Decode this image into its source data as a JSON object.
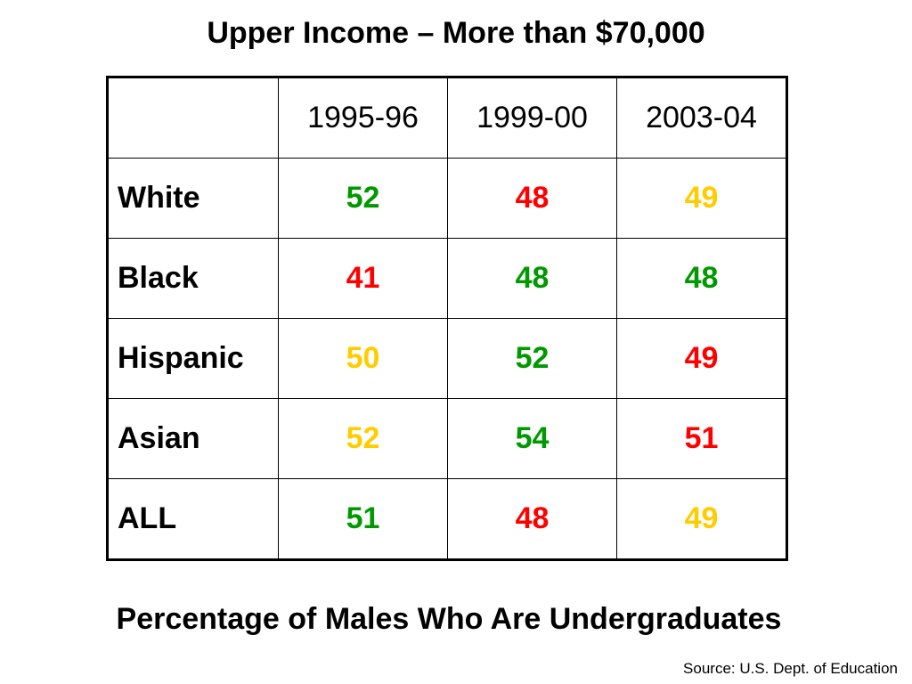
{
  "header": {
    "title": "Upper Income – More than $70,000"
  },
  "table": {
    "columns": [
      "1995-96",
      "1999-00",
      "2003-04"
    ],
    "rows": [
      {
        "label": "White",
        "values": [
          52,
          48,
          49
        ],
        "colors": [
          "#009900",
          "#ff0000",
          "#ffcc00"
        ]
      },
      {
        "label": "Black",
        "values": [
          41,
          48,
          48
        ],
        "colors": [
          "#ff0000",
          "#009900",
          "#009900"
        ]
      },
      {
        "label": "Hispanic",
        "values": [
          50,
          52,
          49
        ],
        "colors": [
          "#ffcc00",
          "#009900",
          "#ff0000"
        ]
      },
      {
        "label": "Asian",
        "values": [
          52,
          54,
          51
        ],
        "colors": [
          "#ffcc00",
          "#009900",
          "#ff0000"
        ]
      },
      {
        "label": "ALL",
        "values": [
          51,
          48,
          49
        ],
        "colors": [
          "#009900",
          "#ff0000",
          "#ffcc00"
        ]
      }
    ]
  },
  "caption": "Percentage of Males Who Are Undergraduates",
  "source": "Source: U.S. Dept. of Education"
}
